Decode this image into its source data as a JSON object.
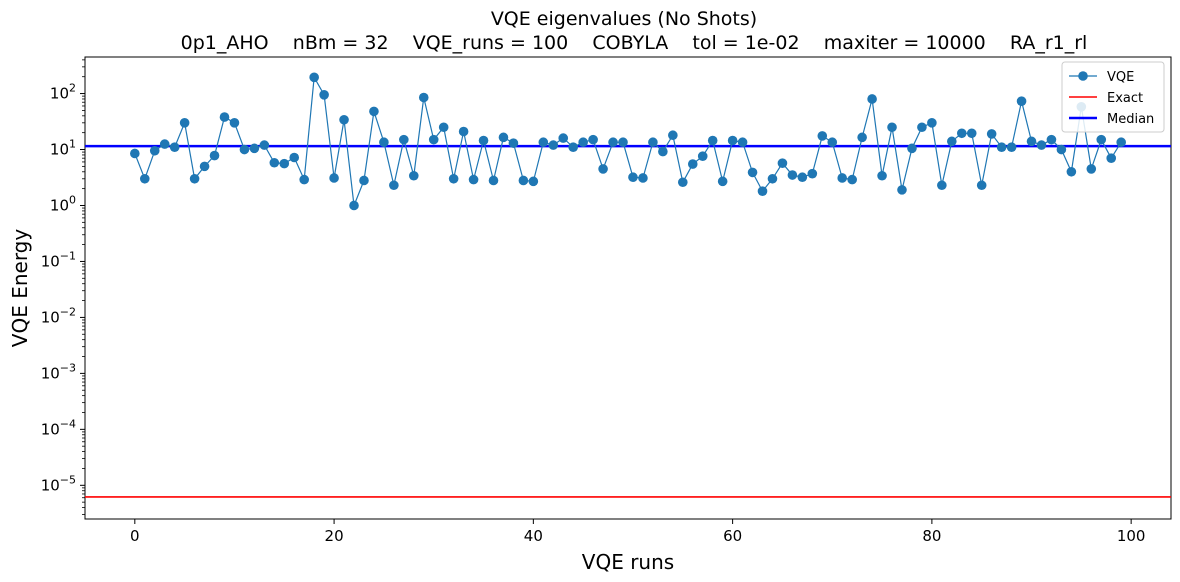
{
  "chart_data": {
    "type": "scatter",
    "title": "VQE eigenvalues (No Shots)",
    "subtitle": "0p1_AHO    nBm = 32    VQE_runs = 100    COBYLA    tol = 1e-02    maxiter = 10000    RA_r1_rl",
    "xlabel": "VQE runs",
    "ylabel": "VQE Energy",
    "xlim": [
      -5,
      104
    ],
    "ylim": [
      2.5e-06,
      450
    ],
    "y_scale": "log",
    "x_ticks": [
      0,
      20,
      40,
      60,
      80,
      100
    ],
    "x_tick_labels": [
      "0",
      "20",
      "40",
      "60",
      "80",
      "100"
    ],
    "y_ticks": [
      1e-05,
      0.0001,
      0.001,
      0.01,
      0.1,
      1,
      10,
      100
    ],
    "y_tick_labels": [
      {
        "base": "10",
        "exp": "−5"
      },
      {
        "base": "10",
        "exp": "−4"
      },
      {
        "base": "10",
        "exp": "−3"
      },
      {
        "base": "10",
        "exp": "−2"
      },
      {
        "base": "10",
        "exp": "−1"
      },
      {
        "base": "10",
        "exp": "0"
      },
      {
        "base": "10",
        "exp": "1"
      },
      {
        "base": "10",
        "exp": "2"
      }
    ],
    "grid": false,
    "legend_position": "top-right",
    "series": [
      {
        "name": "VQE",
        "color": "#1f77b4",
        "marker": "circle",
        "x": [
          0,
          1,
          2,
          3,
          4,
          5,
          6,
          7,
          8,
          9,
          10,
          11,
          12,
          13,
          14,
          15,
          16,
          17,
          18,
          19,
          20,
          21,
          22,
          23,
          24,
          25,
          26,
          27,
          28,
          29,
          30,
          31,
          32,
          33,
          34,
          35,
          36,
          37,
          38,
          39,
          40,
          41,
          42,
          43,
          44,
          45,
          46,
          47,
          48,
          49,
          50,
          51,
          52,
          53,
          54,
          55,
          56,
          57,
          58,
          59,
          60,
          61,
          62,
          63,
          64,
          65,
          66,
          67,
          68,
          69,
          70,
          71,
          72,
          73,
          74,
          75,
          76,
          77,
          78,
          79,
          80,
          81,
          82,
          83,
          84,
          85,
          86,
          87,
          88,
          89,
          90,
          91,
          92,
          93,
          94,
          95,
          96,
          97,
          98,
          99
        ],
        "y": [
          8.5,
          3.0,
          9.5,
          12.5,
          11,
          30,
          3.0,
          5.0,
          7.8,
          38,
          30,
          10,
          10.5,
          12,
          5.8,
          5.6,
          7.2,
          2.9,
          195,
          95,
          3.1,
          34,
          1.0,
          2.8,
          48,
          13.5,
          2.3,
          15,
          3.4,
          85,
          15,
          25,
          3.0,
          21,
          2.9,
          14.5,
          2.8,
          16.5,
          13,
          2.8,
          2.7,
          13.5,
          12,
          16,
          11,
          13.5,
          15,
          4.5,
          13.5,
          13.5,
          3.2,
          3.1,
          13.5,
          9.2,
          18,
          2.6,
          5.5,
          7.6,
          14.5,
          2.7,
          14.5,
          13.5,
          3.9,
          1.8,
          3.0,
          5.7,
          3.5,
          3.2,
          3.7,
          17.5,
          13.5,
          3.1,
          2.9,
          16.5,
          80,
          3.4,
          25,
          1.9,
          10.5,
          25,
          30,
          2.3,
          14,
          19.5,
          19.5,
          2.3,
          19,
          11,
          11,
          73,
          14,
          12,
          15,
          10,
          4.0,
          58,
          4.5,
          15,
          7.0,
          13.5
        ]
      },
      {
        "name": "Exact",
        "color": "#ff0000",
        "type": "hline",
        "y": 6.2e-06
      },
      {
        "name": "Median",
        "color": "#0000ff",
        "type": "hline",
        "y": 11.5
      }
    ]
  }
}
